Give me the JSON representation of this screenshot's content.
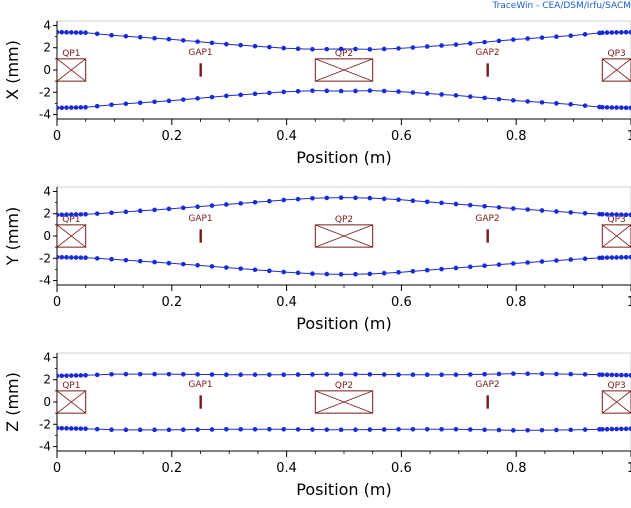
{
  "watermark": "TraceWin - CEA/DSM/Irfu/SACM",
  "colors": {
    "curve": "#1a2bd6",
    "marker": "#1a2bd6",
    "element": "#7a1a1a",
    "axis": "#000000",
    "watermark": "#1a5ed6"
  },
  "chart_data": [
    {
      "type": "line",
      "xlabel": "Position (m)",
      "ylabel": "X (mm)",
      "xlim": [
        0,
        1
      ],
      "ylim": [
        -4.4,
        4.4
      ],
      "x_ticks": [
        "0",
        "0.2",
        "0.4",
        "0.6",
        "0.8",
        "1"
      ],
      "y_ticks": [
        "4",
        "2",
        "0",
        "-2",
        "-4"
      ],
      "series": [
        {
          "x": [
            0,
            0.05,
            0.1,
            0.2,
            0.3,
            0.4,
            0.45,
            0.5,
            0.55,
            0.6,
            0.7,
            0.8,
            0.9,
            0.95,
            1
          ],
          "values": [
            3.4,
            3.35,
            3.1,
            2.75,
            2.3,
            1.95,
            1.85,
            1.9,
            1.85,
            1.95,
            2.3,
            2.75,
            3.1,
            3.35,
            3.4
          ]
        },
        {
          "x": [
            0,
            0.05,
            0.1,
            0.2,
            0.3,
            0.4,
            0.45,
            0.5,
            0.55,
            0.6,
            0.7,
            0.8,
            0.9,
            0.95,
            1
          ],
          "values": [
            -3.4,
            -3.35,
            -3.1,
            -2.75,
            -2.3,
            -1.95,
            -1.85,
            -1.9,
            -1.85,
            -1.95,
            -2.3,
            -2.75,
            -3.1,
            -3.35,
            -3.4
          ]
        }
      ],
      "elements": [
        {
          "label": "QP1",
          "kind": "quad",
          "x_start": 0,
          "x_end": 0.05
        },
        {
          "label": "GAP1",
          "kind": "gap",
          "x": 0.25
        },
        {
          "label": "QP2",
          "kind": "quad",
          "x_start": 0.45,
          "x_end": 0.55
        },
        {
          "label": "GAP2",
          "kind": "gap",
          "x": 0.75
        },
        {
          "label": "QP3",
          "kind": "quad",
          "x_start": 0.95,
          "x_end": 1.0
        }
      ],
      "elements_visible": [
        "QP1",
        "GAP1",
        "QP2",
        "GAP2",
        "QP3"
      ]
    },
    {
      "type": "line",
      "xlabel": "Position (m)",
      "ylabel": "Y (mm)",
      "xlim": [
        0,
        1
      ],
      "ylim": [
        -4.4,
        4.4
      ],
      "x_ticks": [
        "0",
        "0.2",
        "0.4",
        "0.6",
        "0.8",
        "1"
      ],
      "y_ticks": [
        "4",
        "2",
        "0",
        "-2",
        "-4"
      ],
      "series": [
        {
          "x": [
            0,
            0.05,
            0.1,
            0.2,
            0.3,
            0.4,
            0.45,
            0.5,
            0.55,
            0.6,
            0.7,
            0.8,
            0.9,
            0.95,
            1
          ],
          "values": [
            1.9,
            1.95,
            2.1,
            2.45,
            2.85,
            3.25,
            3.4,
            3.45,
            3.4,
            3.25,
            2.85,
            2.45,
            2.1,
            1.95,
            1.9
          ]
        },
        {
          "x": [
            0,
            0.05,
            0.1,
            0.2,
            0.3,
            0.4,
            0.45,
            0.5,
            0.55,
            0.6,
            0.7,
            0.8,
            0.9,
            0.95,
            1
          ],
          "values": [
            -1.9,
            -1.95,
            -2.1,
            -2.45,
            -2.85,
            -3.25,
            -3.4,
            -3.45,
            -3.4,
            -3.25,
            -2.85,
            -2.45,
            -2.1,
            -1.95,
            -1.9
          ]
        }
      ],
      "elements": [
        {
          "label": "QP1",
          "kind": "quad",
          "x_start": 0,
          "x_end": 0.05
        },
        {
          "label": "GAP1",
          "kind": "gap",
          "x": 0.25
        },
        {
          "label": "QP2",
          "kind": "quad",
          "x_start": 0.45,
          "x_end": 0.55
        },
        {
          "label": "GAP2",
          "kind": "gap",
          "x": 0.75
        },
        {
          "label": "QP3",
          "kind": "quad",
          "x_start": 0.95,
          "x_end": 1.0
        }
      ]
    },
    {
      "type": "line",
      "xlabel": "Position (m)",
      "ylabel": "Z (mm)",
      "xlim": [
        0,
        1
      ],
      "ylim": [
        -4.4,
        4.4
      ],
      "x_ticks": [
        "0",
        "0.2",
        "0.4",
        "0.6",
        "0.8",
        "1"
      ],
      "y_ticks": [
        "4",
        "2",
        "0",
        "-2",
        "-4"
      ],
      "series": [
        {
          "x": [
            0,
            0.05,
            0.1,
            0.2,
            0.3,
            0.4,
            0.5,
            0.6,
            0.7,
            0.8,
            0.9,
            0.95,
            1
          ],
          "values": [
            2.35,
            2.4,
            2.5,
            2.5,
            2.45,
            2.45,
            2.5,
            2.45,
            2.45,
            2.55,
            2.5,
            2.45,
            2.4
          ]
        },
        {
          "x": [
            0,
            0.05,
            0.1,
            0.2,
            0.3,
            0.4,
            0.5,
            0.6,
            0.7,
            0.8,
            0.9,
            0.95,
            1
          ],
          "values": [
            -2.35,
            -2.4,
            -2.5,
            -2.5,
            -2.45,
            -2.45,
            -2.5,
            -2.45,
            -2.45,
            -2.55,
            -2.5,
            -2.45,
            -2.4
          ]
        }
      ],
      "elements": [
        {
          "label": "QP1",
          "kind": "quad",
          "x_start": 0,
          "x_end": 0.05
        },
        {
          "label": "GAP1",
          "kind": "gap",
          "x": 0.25
        },
        {
          "label": "QP2",
          "kind": "quad",
          "x_start": 0.45,
          "x_end": 0.55
        },
        {
          "label": "GAP2",
          "kind": "gap",
          "x": 0.75
        },
        {
          "label": "QP3",
          "kind": "quad",
          "x_start": 0.95,
          "x_end": 1.0
        }
      ]
    }
  ]
}
